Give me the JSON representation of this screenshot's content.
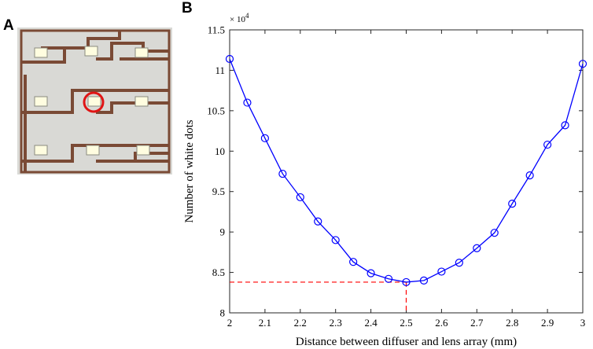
{
  "panels": {
    "a": "A",
    "b": "B"
  },
  "photo": {
    "board_color": "#7a4a35",
    "background_color": "#d9d9d5",
    "highlight_color": "#e01515",
    "led_color": "#fffde0"
  },
  "chart_data": {
    "type": "line",
    "xlabel": "Distance between diffuser and lens array (mm)",
    "ylabel": "Number of white dots",
    "y_exponent_label": "× 10",
    "y_exponent_power": "4",
    "xlim": [
      2,
      3
    ],
    "ylim": [
      80000,
      115000
    ],
    "x_ticks": [
      2,
      2.1,
      2.2,
      2.3,
      2.4,
      2.5,
      2.6,
      2.7,
      2.8,
      2.9,
      3
    ],
    "x_tick_labels": [
      "2",
      "2.1",
      "2.2",
      "2.3",
      "2.4",
      "2.5",
      "2.6",
      "2.7",
      "2.8",
      "2.9",
      "3"
    ],
    "y_ticks": [
      80000,
      85000,
      90000,
      95000,
      100000,
      105000,
      110000,
      115000
    ],
    "y_tick_labels": [
      "8",
      "8.5",
      "9",
      "9.5",
      "10",
      "10.5",
      "11",
      "11.5"
    ],
    "series": [
      {
        "x": [
          2,
          2.05,
          2.1,
          2.15,
          2.2,
          2.25,
          2.3,
          2.35,
          2.4,
          2.45,
          2.5,
          2.55,
          2.6,
          2.65,
          2.7,
          2.75,
          2.8,
          2.85,
          2.9,
          2.95,
          3
        ],
        "y": [
          111400,
          106000,
          101600,
          97200,
          94300,
          91300,
          89000,
          86300,
          84900,
          84200,
          83800,
          84000,
          85100,
          86200,
          88000,
          89900,
          93500,
          97000,
          100800,
          103200,
          110800
        ],
        "color": "#0000ff",
        "marker": "circle"
      }
    ],
    "minimum_marker": {
      "x": 2.5,
      "y": 83800,
      "color": "#ff0000",
      "style": "dashed"
    },
    "grid": false
  }
}
